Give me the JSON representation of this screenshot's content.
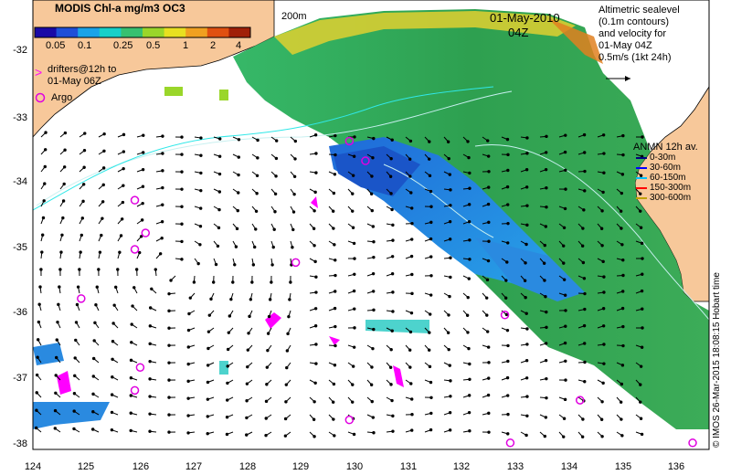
{
  "title": {
    "product": "MODIS Chl-a mg/m3 OC3",
    "date": "01-May-2010",
    "time": "04Z"
  },
  "colorbar": {
    "ticks": [
      "0.05",
      "0.1",
      "0.25",
      "0.5",
      "1",
      "2",
      "4"
    ],
    "colors": [
      "#1a0aa6",
      "#1f4fd8",
      "#1aa3e8",
      "#18d0c8",
      "#38c070",
      "#9ad62a",
      "#e8e020",
      "#f0a020",
      "#e05010",
      "#a02008"
    ]
  },
  "contour_label": "200m",
  "altimetry_note": [
    "Altimetric sealevel",
    "(0.1m contours)",
    "and velocity for",
    "01-May 04Z",
    "0.5m/s (1kt 24h)"
  ],
  "drifters_legend": [
    "drifters@12h to",
    "01-May 06Z"
  ],
  "argo_legend": "Argo",
  "anmn_legend": {
    "title": "ANMN 12h av.",
    "items": [
      {
        "label": "0-30m",
        "color": "#000080"
      },
      {
        "label": "30-60m",
        "color": "#0000ff"
      },
      {
        "label": "60-150m",
        "color": "#00c0ff"
      },
      {
        "label": "150-300m",
        "color": "#ff0000"
      },
      {
        "label": "300-600m",
        "color": "#c0a000"
      }
    ]
  },
  "axes": {
    "y_ticks": [
      "-32",
      "-33",
      "-34",
      "-35",
      "-36",
      "-37",
      "-38"
    ],
    "x_ticks": [
      "124",
      "125",
      "126",
      "127",
      "128",
      "129",
      "130",
      "131",
      "132",
      "133",
      "134",
      "135",
      "136"
    ]
  },
  "credit": "© IMOS 26-Mar-2015 18:08:15 Hobart time",
  "argo_floats": [
    {
      "lon": 124.9,
      "lat": -35.8
    },
    {
      "lon": 125.9,
      "lat": -34.3
    },
    {
      "lon": 126.1,
      "lat": -34.8
    },
    {
      "lon": 125.9,
      "lat": -35.05
    },
    {
      "lon": 128.9,
      "lat": -35.25
    },
    {
      "lon": 129.9,
      "lat": -33.4
    },
    {
      "lon": 130.2,
      "lat": -33.7
    },
    {
      "lon": 126.0,
      "lat": -36.85
    },
    {
      "lon": 125.9,
      "lat": -37.2
    },
    {
      "lon": 129.9,
      "lat": -37.65
    },
    {
      "lon": 132.8,
      "lat": -36.05
    },
    {
      "lon": 134.2,
      "lat": -37.35
    },
    {
      "lon": 132.9,
      "lat": -38.0
    },
    {
      "lon": 136.3,
      "lat": -38.0
    }
  ]
}
